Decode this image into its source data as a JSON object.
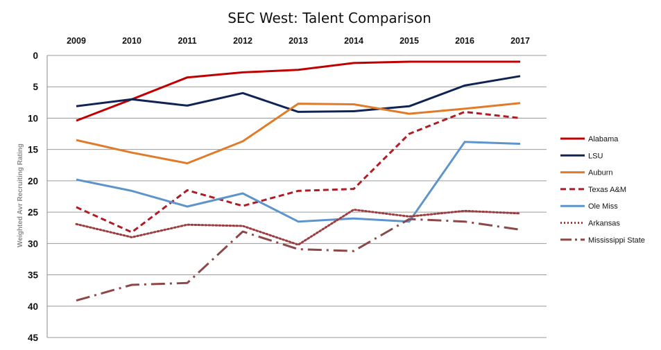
{
  "chart_data": {
    "type": "line",
    "title": "SEC West: Talent Comparison",
    "ylabel": "Weighted Avr Recruiting Rating",
    "xlabel": "",
    "x": [
      "2009",
      "2010",
      "2011",
      "2012",
      "2013",
      "2014",
      "2015",
      "2016",
      "2017"
    ],
    "ylim": [
      0,
      45
    ],
    "y_inverted": true,
    "y_ticks": [
      0,
      5,
      10,
      15,
      20,
      25,
      30,
      35,
      40,
      45
    ],
    "x_axis_position": "top",
    "grid": "horizontal",
    "legend_position": "right",
    "series": [
      {
        "name": "Alabama",
        "color": "#c00000",
        "style": "solid",
        "values": [
          10.4,
          7.0,
          3.5,
          2.7,
          2.3,
          1.2,
          1.0,
          1.0,
          1.0
        ]
      },
      {
        "name": "LSU",
        "color": "#0f2454",
        "style": "solid",
        "values": [
          8.1,
          7.0,
          8.0,
          6.0,
          9.0,
          8.9,
          8.1,
          4.8,
          3.3
        ]
      },
      {
        "name": "Auburn",
        "color": "#e07b2a",
        "style": "solid",
        "values": [
          13.5,
          15.5,
          17.2,
          13.7,
          7.7,
          7.8,
          9.3,
          8.5,
          7.6
        ]
      },
      {
        "name": "Texas A&M",
        "color": "#b01c24",
        "style": "dashed",
        "values": [
          24.2,
          28.2,
          21.5,
          24.0,
          21.6,
          21.3,
          12.5,
          9.0,
          10.0
        ]
      },
      {
        "name": "Ole Miss",
        "color": "#5d95cb",
        "style": "solid",
        "values": [
          19.8,
          21.6,
          24.1,
          22.0,
          26.5,
          26.0,
          26.5,
          13.8,
          14.1
        ]
      },
      {
        "name": "Arkansas",
        "color": "#9b3d40",
        "style": "dotted",
        "values": [
          26.9,
          29.0,
          27.0,
          27.2,
          30.2,
          24.6,
          25.7,
          24.8,
          25.2
        ]
      },
      {
        "name": "Mississippi State",
        "color": "#8c4848",
        "style": "long-dash-dot",
        "values": [
          39.1,
          36.6,
          36.3,
          28.1,
          30.9,
          31.2,
          26.1,
          26.5,
          27.8
        ]
      }
    ]
  }
}
